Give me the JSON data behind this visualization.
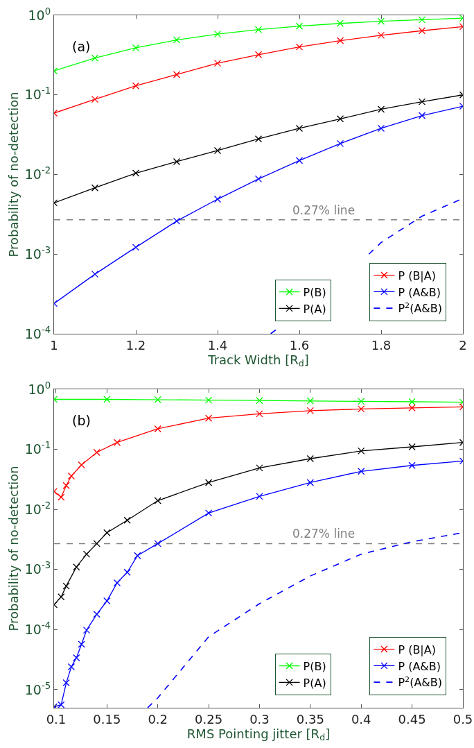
{
  "chart_data": [
    {
      "type": "line",
      "xlabel": "Track Width [R$_{d}$]",
      "ylabel": "Probability of no-detection",
      "log": "y",
      "legend": "bottom right",
      "annotations": [
        "(a)"
      ],
      "xlim": [
        1,
        2
      ],
      "xticks": [
        1,
        1.2,
        1.4,
        1.6,
        1.8,
        2
      ],
      "ylim": [
        0.0001,
        1
      ],
      "yticks": [
        {
          "value": 0.0001,
          "label": "10$^{-4}$"
        },
        {
          "value": 0.001,
          "label": "10$^{-3}$"
        },
        {
          "value": 0.01,
          "label": "10$^{-2}$"
        },
        {
          "value": 0.1,
          "label": "10$^{-1}$"
        },
        {
          "value": 1,
          "label": "10$^{0}$"
        }
      ],
      "ref_lines": [
        {
          "axis": "y",
          "value": 0.0027,
          "label": "0.27% line",
          "color": "#808080",
          "line_style": "dashed"
        }
      ],
      "x": [
        1,
        1.1,
        1.2,
        1.3,
        1.4,
        1.5,
        1.6,
        1.7,
        1.8,
        1.9,
        2
      ],
      "series": [
        {
          "name": "P(B)",
          "color": "#00ff00",
          "marker": "cross",
          "values": [
            0.2,
            0.29,
            0.39,
            0.49,
            0.58,
            0.66,
            0.73,
            0.79,
            0.84,
            0.88,
            0.92
          ]
        },
        {
          "name": "P(A)",
          "color": "#000000",
          "marker": "cross",
          "values": [
            0.0044,
            0.0068,
            0.0104,
            0.0145,
            0.02,
            0.028,
            0.038,
            0.05,
            0.066,
            0.082,
            0.1
          ]
        },
        {
          "name": "P (B|A)",
          "color": "#ff0000",
          "marker": "cross",
          "values": [
            0.059,
            0.088,
            0.13,
            0.18,
            0.25,
            0.32,
            0.4,
            0.48,
            0.56,
            0.64,
            0.72
          ]
        },
        {
          "name": "P (A&B)",
          "color": "#0000ff",
          "marker": "cross",
          "values": [
            0.00024,
            0.00056,
            0.00122,
            0.0026,
            0.0049,
            0.0088,
            0.015,
            0.0245,
            0.038,
            0.055,
            0.072
          ]
        },
        {
          "name": "P$^{2}$(A&B)",
          "color": "#0000ff",
          "marker": "none",
          "line_style": "dashed",
          "x": [
            1.53,
            1.55,
            1.6,
            1.7,
            1.77,
            1.8,
            1.9,
            2
          ],
          "values": [
            0.0001,
            0.00012,
            null,
            null,
            0.001,
            0.0014,
            0.003,
            0.005
          ]
        }
      ]
    },
    {
      "type": "line",
      "xlabel": "RMS Pointing jitter [R$_{d}$]",
      "ylabel": "Probability of no-detection",
      "log": "y",
      "legend": "bottom right",
      "annotations": [
        "(b)"
      ],
      "xlim": [
        0.098,
        0.5
      ],
      "xticks": [
        0.1,
        0.15,
        0.2,
        0.25,
        0.3,
        0.35,
        0.4,
        0.45,
        0.5
      ],
      "ylim": [
        5e-06,
        1
      ],
      "yticks": [
        {
          "value": 1e-05,
          "label": "10$^{-5}$"
        },
        {
          "value": 0.0001,
          "label": "10$^{-4}$"
        },
        {
          "value": 0.001,
          "label": "10$^{-3}$"
        },
        {
          "value": 0.01,
          "label": "10$^{-2}$"
        },
        {
          "value": 0.1,
          "label": "10$^{-1}$"
        },
        {
          "value": 1,
          "label": "10$^{0}$"
        }
      ],
      "ref_lines": [
        {
          "axis": "y",
          "value": 0.0027,
          "label": "0.27% line",
          "color": "#808080",
          "line_style": "dashed"
        }
      ],
      "series": [
        {
          "name": "P(B)",
          "color": "#00ff00",
          "marker": "cross",
          "x": [
            0.098,
            0.15,
            0.2,
            0.25,
            0.3,
            0.35,
            0.4,
            0.45,
            0.5
          ],
          "values": [
            0.68,
            0.68,
            0.67,
            0.66,
            0.65,
            0.64,
            0.63,
            0.62,
            0.61
          ]
        },
        {
          "name": "P(A)",
          "color": "#000000",
          "marker": "cross",
          "x": [
            0.098,
            0.105,
            0.11,
            0.12,
            0.13,
            0.14,
            0.15,
            0.17,
            0.2,
            0.25,
            0.3,
            0.35,
            0.4,
            0.45,
            0.5
          ],
          "values": [
            0.00026,
            0.00035,
            0.00053,
            0.0011,
            0.0018,
            0.0027,
            0.0041,
            0.0066,
            0.014,
            0.028,
            0.049,
            0.07,
            0.094,
            0.11,
            0.13
          ]
        },
        {
          "name": "P (B|A)",
          "color": "#ff0000",
          "marker": "cross",
          "x": [
            0.098,
            0.105,
            0.11,
            0.115,
            0.125,
            0.14,
            0.16,
            0.2,
            0.25,
            0.3,
            0.35,
            0.4,
            0.45,
            0.5
          ],
          "values": [
            0.02,
            0.016,
            0.025,
            0.036,
            0.055,
            0.089,
            0.13,
            0.22,
            0.33,
            0.39,
            0.44,
            0.47,
            0.49,
            0.51
          ]
        },
        {
          "name": "P (A&B)",
          "color": "#0000ff",
          "marker": "cross",
          "x": [
            0.098,
            0.105,
            0.11,
            0.115,
            0.12,
            0.125,
            0.13,
            0.14,
            0.15,
            0.16,
            0.17,
            0.18,
            0.2,
            0.25,
            0.3,
            0.35,
            0.4,
            0.45,
            0.5
          ],
          "values": [
            5.2e-06,
            5.6e-06,
            1.3e-05,
            2.4e-05,
            3.4e-05,
            5.7e-05,
            9.8e-05,
            0.00018,
            0.0003,
            0.0006,
            0.0009,
            0.0017,
            0.0027,
            0.0087,
            0.0165,
            0.028,
            0.043,
            0.054,
            0.064
          ]
        },
        {
          "name": "P$^{2}$(A&B)",
          "color": "#0000ff",
          "marker": "none",
          "line_style": "dashed",
          "x": [
            0.19,
            0.2,
            0.25,
            0.3,
            0.35,
            0.4,
            0.45,
            0.5
          ],
          "values": [
            5e-06,
            7.3e-06,
            7.6e-05,
            0.00027,
            0.00078,
            0.0018,
            0.0029,
            0.0041
          ]
        }
      ]
    }
  ]
}
